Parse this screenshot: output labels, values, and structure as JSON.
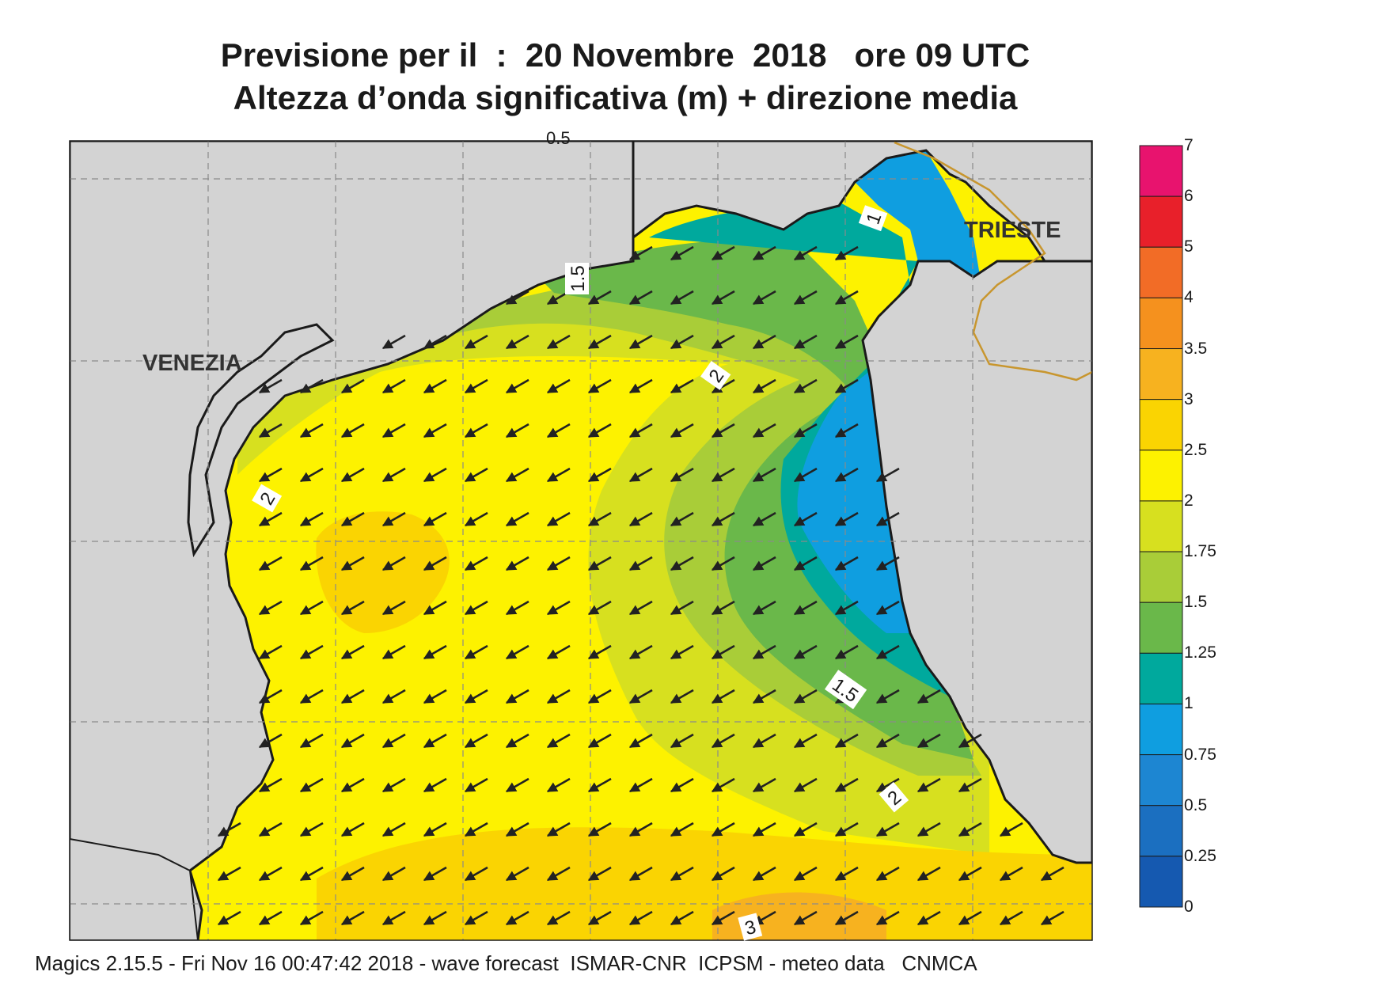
{
  "header": {
    "line1": "Previsione per il  :  20 Novembre  2018   ore 09 UTC",
    "line2": "Altezza d’onda significativa (m) + direzione media"
  },
  "map": {
    "cities": [
      {
        "name": "VENEZIA"
      },
      {
        "name": "TRIESTE"
      }
    ],
    "top_partial_label": "0.5",
    "contour_labels": [
      "1",
      "1.5",
      "2",
      "2",
      "1.5",
      "2",
      "3"
    ],
    "arrow_direction": "south-west",
    "colors": {
      "land": "#d3d3d3",
      "coast": "#1a1a1a",
      "border": "#c8962e",
      "grid": "#8a8a8a"
    }
  },
  "legend": {
    "labels": [
      "7",
      "6",
      "5",
      "4",
      "3.5",
      "3",
      "2.5",
      "2",
      "1.75",
      "1.5",
      "1.25",
      "1",
      "0.75",
      "0.5",
      "0.25",
      "0"
    ],
    "colors": [
      "#e8136e",
      "#e8202a",
      "#f26c26",
      "#f5911e",
      "#f7b21f",
      "#fad402",
      "#fdf200",
      "#d7e01f",
      "#a9cd38",
      "#6ab84a",
      "#00a99d",
      "#0f9ee0",
      "#1d86d2",
      "#1b6fc0",
      "#1559b0"
    ]
  },
  "footer": {
    "text": "Magics 2.15.5 - Fri Nov 16 00:47:42 2018 - wave forecast  ISMAR-CNR  ICPSM - meteo data   CNMCA"
  }
}
